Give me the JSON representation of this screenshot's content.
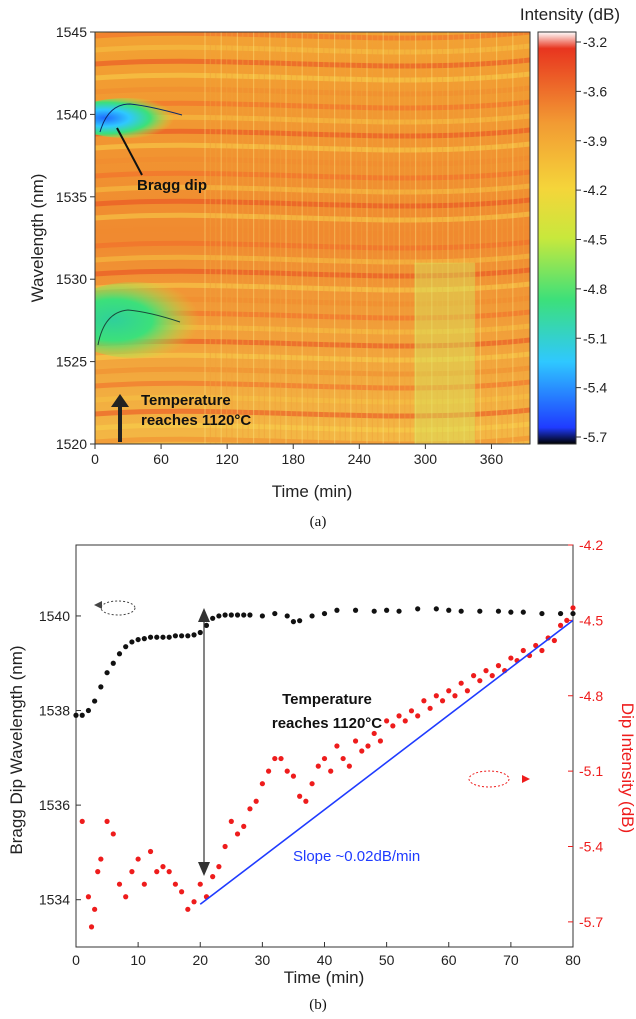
{
  "chart_data": [
    {
      "type": "heatmap",
      "panel_label": "(a)",
      "xlabel": "Time (min)",
      "ylabel": "Wavelength (nm)",
      "xlim": [
        0,
        395
      ],
      "ylim": [
        1520,
        1545
      ],
      "xticks": [
        "0",
        "60",
        "120",
        "180",
        "240",
        "300",
        "360"
      ],
      "yticks": [
        "1520",
        "1525",
        "1530",
        "1535",
        "1540",
        "1545"
      ],
      "colorbar": {
        "title": "Intensity (dB)",
        "ticks": [
          "-3.2",
          "-3.6",
          "-3.9",
          "-4.2",
          "-4.5",
          "-4.8",
          "-5.1",
          "-5.4",
          "-5.7"
        ],
        "range": [
          -5.7,
          -3.2
        ],
        "colors": [
          "#000000",
          "#1f3bff",
          "#2fc8ff",
          "#3ce07a",
          "#c8e83c",
          "#f5d53a",
          "#f29a33",
          "#e8351f",
          "#ffffff"
        ]
      },
      "annotations": {
        "bragg_dip": "Bragg dip",
        "temperature_line1": "Temperature",
        "temperature_line2": "reaches 1120°C"
      }
    },
    {
      "type": "scatter",
      "panel_label": "(b)",
      "xlabel": "Time (min)",
      "ylabel_left": "Bragg  Dip Wavelength (nm)",
      "ylabel_right": "Dip Intensity (dB)",
      "xlim": [
        0,
        80
      ],
      "ylim_left": [
        1533,
        1541.5
      ],
      "ylim_right": [
        -5.8,
        -4.2
      ],
      "xticks": [
        "0",
        "10",
        "20",
        "30",
        "40",
        "50",
        "60",
        "70",
        "80"
      ],
      "yticks_left": [
        "1534",
        "1536",
        "1538",
        "1540"
      ],
      "yticks_right": [
        "-4.2",
        "-4.5",
        "-4.8",
        "-5.1",
        "-5.4",
        "-5.7"
      ],
      "series": [
        {
          "color": "#111111",
          "axis": "left",
          "x": [
            0,
            1,
            2,
            3,
            4,
            5,
            6,
            7,
            8,
            9,
            10,
            11,
            12,
            13,
            14,
            15,
            16,
            17,
            18,
            19,
            20,
            21,
            22,
            23,
            24,
            25,
            26,
            27,
            28,
            30,
            32,
            34,
            35,
            36,
            38,
            40,
            42,
            45,
            48,
            50,
            52,
            55,
            58,
            60,
            62,
            65,
            68,
            70,
            72,
            75,
            78,
            80
          ],
          "y": [
            1537.9,
            1537.9,
            1538.0,
            1538.2,
            1538.5,
            1538.8,
            1539.0,
            1539.2,
            1539.35,
            1539.45,
            1539.5,
            1539.52,
            1539.55,
            1539.55,
            1539.55,
            1539.55,
            1539.58,
            1539.58,
            1539.58,
            1539.6,
            1539.65,
            1539.8,
            1539.95,
            1540.0,
            1540.02,
            1540.02,
            1540.02,
            1540.02,
            1540.02,
            1540.0,
            1540.05,
            1540.0,
            1539.88,
            1539.9,
            1540.0,
            1540.05,
            1540.12,
            1540.12,
            1540.1,
            1540.12,
            1540.1,
            1540.15,
            1540.15,
            1540.12,
            1540.1,
            1540.1,
            1540.1,
            1540.08,
            1540.08,
            1540.05,
            1540.05,
            1540.05
          ]
        },
        {
          "color": "#ee1c1c",
          "axis": "right",
          "x": [
            1,
            2,
            2.5,
            3,
            3.5,
            4,
            5,
            6,
            7,
            8,
            9,
            10,
            11,
            12,
            13,
            14,
            15,
            16,
            17,
            18,
            19,
            20,
            21,
            22,
            23,
            24,
            25,
            26,
            27,
            28,
            29,
            30,
            31,
            32,
            33,
            34,
            35,
            36,
            37,
            38,
            39,
            40,
            41,
            42,
            43,
            44,
            45,
            46,
            47,
            48,
            49,
            50,
            51,
            52,
            53,
            54,
            55,
            56,
            57,
            58,
            59,
            60,
            61,
            62,
            63,
            64,
            65,
            66,
            67,
            68,
            69,
            70,
            71,
            72,
            73,
            74,
            75,
            76,
            77,
            78,
            79,
            80
          ],
          "y": [
            -5.3,
            -5.6,
            -5.72,
            -5.65,
            -5.5,
            -5.45,
            -5.3,
            -5.35,
            -5.55,
            -5.6,
            -5.5,
            -5.45,
            -5.55,
            -5.42,
            -5.5,
            -5.48,
            -5.5,
            -5.55,
            -5.58,
            -5.65,
            -5.62,
            -5.55,
            -5.6,
            -5.52,
            -5.48,
            -5.4,
            -5.3,
            -5.35,
            -5.32,
            -5.25,
            -5.22,
            -5.15,
            -5.1,
            -5.05,
            -5.05,
            -5.1,
            -5.12,
            -5.2,
            -5.22,
            -5.15,
            -5.08,
            -5.05,
            -5.1,
            -5.0,
            -5.05,
            -5.08,
            -4.98,
            -5.02,
            -5.0,
            -4.95,
            -4.98,
            -4.9,
            -4.92,
            -4.88,
            -4.9,
            -4.86,
            -4.88,
            -4.82,
            -4.85,
            -4.8,
            -4.82,
            -4.78,
            -4.8,
            -4.75,
            -4.78,
            -4.72,
            -4.74,
            -4.7,
            -4.72,
            -4.68,
            -4.7,
            -4.65,
            -4.66,
            -4.62,
            -4.64,
            -4.6,
            -4.62,
            -4.57,
            -4.58,
            -4.52,
            -4.5,
            -4.45
          ]
        }
      ],
      "fit_line": {
        "x": [
          20,
          80
        ],
        "y": [
          -5.63,
          -4.5
        ],
        "color": "#1f3bff",
        "label": "Slope ~0.02dB/min"
      },
      "annotations": {
        "temperature_line1": "Temperature",
        "temperature_line2": "reaches  1120°C"
      }
    }
  ]
}
